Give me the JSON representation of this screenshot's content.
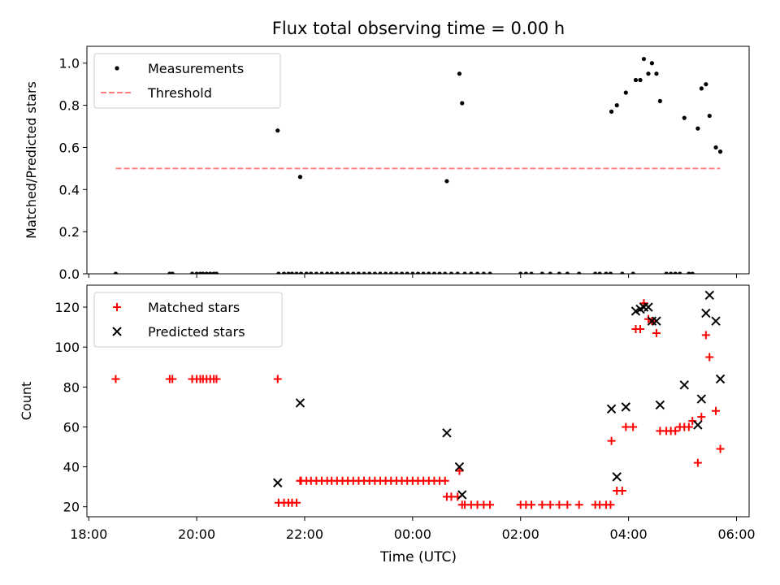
{
  "figure": {
    "title": "Flux total observing time = 0.00 h",
    "xlabel": "Time (UTC)",
    "x_ticks": [
      "18:00",
      "20:00",
      "22:00",
      "00:00",
      "02:00",
      "04:00",
      "06:00"
    ]
  },
  "colors": {
    "measurements": "#000000",
    "threshold": "#ff7f7f",
    "matched": "#ff0000",
    "predicted": "#000000"
  },
  "chart_data": [
    {
      "type": "scatter",
      "ylabel": "Matched/Predicted stars",
      "ylim": [
        0,
        1.08
      ],
      "xlim": [
        "17:58",
        "06:14"
      ],
      "y_ticks": [
        "0.0",
        "0.2",
        "0.4",
        "0.6",
        "0.8",
        "1.0"
      ],
      "legend": {
        "placement": "upper left",
        "entries": [
          "Measurements",
          "Threshold"
        ]
      },
      "threshold": {
        "name": "Threshold",
        "y": 0.5,
        "x_start": "18:30",
        "x_end": "05:42",
        "style": "dashed"
      },
      "series": [
        {
          "name": "Measurements",
          "points": [
            [
              "18:30",
              0.0
            ],
            [
              "19:30",
              0.0
            ],
            [
              "19:33",
              0.0
            ],
            [
              "19:55",
              0.0
            ],
            [
              "20:00",
              0.0
            ],
            [
              "20:04",
              0.0
            ],
            [
              "20:07",
              0.0
            ],
            [
              "20:11",
              0.0
            ],
            [
              "20:15",
              0.0
            ],
            [
              "20:19",
              0.0
            ],
            [
              "20:22",
              0.0
            ],
            [
              "21:30",
              0.68
            ],
            [
              "21:31",
              0.0
            ],
            [
              "21:37",
              0.0
            ],
            [
              "21:42",
              0.0
            ],
            [
              "21:46",
              0.0
            ],
            [
              "21:51",
              0.0
            ],
            [
              "21:55",
              0.46
            ],
            [
              "21:56",
              0.0
            ],
            [
              "22:02",
              0.0
            ],
            [
              "22:07",
              0.0
            ],
            [
              "22:13",
              0.0
            ],
            [
              "22:19",
              0.0
            ],
            [
              "22:25",
              0.0
            ],
            [
              "22:30",
              0.0
            ],
            [
              "22:36",
              0.0
            ],
            [
              "22:42",
              0.0
            ],
            [
              "22:48",
              0.0
            ],
            [
              "22:54",
              0.0
            ],
            [
              "23:00",
              0.0
            ],
            [
              "23:06",
              0.0
            ],
            [
              "23:12",
              0.0
            ],
            [
              "23:18",
              0.0
            ],
            [
              "23:24",
              0.0
            ],
            [
              "23:30",
              0.0
            ],
            [
              "23:36",
              0.0
            ],
            [
              "23:42",
              0.0
            ],
            [
              "23:48",
              0.0
            ],
            [
              "23:54",
              0.0
            ],
            [
              "00:00",
              0.0
            ],
            [
              "00:06",
              0.0
            ],
            [
              "00:12",
              0.0
            ],
            [
              "00:18",
              0.0
            ],
            [
              "00:24",
              0.0
            ],
            [
              "00:30",
              0.0
            ],
            [
              "00:36",
              0.0
            ],
            [
              "00:38",
              0.44
            ],
            [
              "00:43",
              0.0
            ],
            [
              "00:50",
              0.0
            ],
            [
              "00:52",
              0.95
            ],
            [
              "00:55",
              0.81
            ],
            [
              "00:58",
              0.0
            ],
            [
              "01:05",
              0.0
            ],
            [
              "01:12",
              0.0
            ],
            [
              "01:19",
              0.0
            ],
            [
              "01:26",
              0.0
            ],
            [
              "02:00",
              0.0
            ],
            [
              "02:06",
              0.0
            ],
            [
              "02:12",
              0.0
            ],
            [
              "02:24",
              0.0
            ],
            [
              "02:33",
              0.0
            ],
            [
              "02:43",
              0.0
            ],
            [
              "02:52",
              0.0
            ],
            [
              "03:05",
              0.0
            ],
            [
              "03:23",
              0.0
            ],
            [
              "03:28",
              0.0
            ],
            [
              "03:35",
              0.0
            ],
            [
              "03:40",
              0.0
            ],
            [
              "03:41",
              0.77
            ],
            [
              "03:47",
              0.8
            ],
            [
              "03:53",
              0.0
            ],
            [
              "03:57",
              0.86
            ],
            [
              "04:05",
              0.0
            ],
            [
              "04:08",
              0.92
            ],
            [
              "04:13",
              0.92
            ],
            [
              "04:17",
              1.02
            ],
            [
              "04:22",
              0.95
            ],
            [
              "04:26",
              1.0
            ],
            [
              "04:31",
              0.95
            ],
            [
              "04:35",
              0.82
            ],
            [
              "04:42",
              0.0
            ],
            [
              "04:47",
              0.0
            ],
            [
              "04:52",
              0.0
            ],
            [
              "04:57",
              0.0
            ],
            [
              "05:02",
              0.74
            ],
            [
              "05:07",
              0.0
            ],
            [
              "05:11",
              0.0
            ],
            [
              "05:17",
              0.69
            ],
            [
              "05:21",
              0.88
            ],
            [
              "05:26",
              0.9
            ],
            [
              "05:30",
              0.75
            ],
            [
              "05:37",
              0.6
            ],
            [
              "05:42",
              0.58
            ]
          ]
        }
      ]
    },
    {
      "type": "scatter",
      "ylabel": "Count",
      "ylim": [
        15,
        131
      ],
      "xlim": [
        "17:58",
        "06:14"
      ],
      "y_ticks": [
        "20",
        "40",
        "60",
        "80",
        "100",
        "120"
      ],
      "legend": {
        "placement": "upper left",
        "entries": [
          "Matched stars",
          "Predicted stars"
        ]
      },
      "series": [
        {
          "name": "Matched stars",
          "marker": "plus",
          "points": [
            [
              "18:30",
              84
            ],
            [
              "19:30",
              84
            ],
            [
              "19:33",
              84
            ],
            [
              "19:55",
              84
            ],
            [
              "20:00",
              84
            ],
            [
              "20:04",
              84
            ],
            [
              "20:07",
              84
            ],
            [
              "20:11",
              84
            ],
            [
              "20:15",
              84
            ],
            [
              "20:19",
              84
            ],
            [
              "20:22",
              84
            ],
            [
              "21:30",
              84
            ],
            [
              "21:31",
              22
            ],
            [
              "21:37",
              22
            ],
            [
              "21:42",
              22
            ],
            [
              "21:46",
              22
            ],
            [
              "21:51",
              22
            ],
            [
              "21:55",
              33
            ],
            [
              "21:56",
              33
            ],
            [
              "22:02",
              33
            ],
            [
              "22:07",
              33
            ],
            [
              "22:13",
              33
            ],
            [
              "22:19",
              33
            ],
            [
              "22:25",
              33
            ],
            [
              "22:30",
              33
            ],
            [
              "22:36",
              33
            ],
            [
              "22:42",
              33
            ],
            [
              "22:48",
              33
            ],
            [
              "22:54",
              33
            ],
            [
              "23:00",
              33
            ],
            [
              "23:06",
              33
            ],
            [
              "23:12",
              33
            ],
            [
              "23:18",
              33
            ],
            [
              "23:24",
              33
            ],
            [
              "23:30",
              33
            ],
            [
              "23:36",
              33
            ],
            [
              "23:42",
              33
            ],
            [
              "23:48",
              33
            ],
            [
              "23:54",
              33
            ],
            [
              "00:00",
              33
            ],
            [
              "00:06",
              33
            ],
            [
              "00:12",
              33
            ],
            [
              "00:18",
              33
            ],
            [
              "00:24",
              33
            ],
            [
              "00:30",
              33
            ],
            [
              "00:36",
              33
            ],
            [
              "00:38",
              25
            ],
            [
              "00:43",
              25
            ],
            [
              "00:50",
              25
            ],
            [
              "00:52",
              38
            ],
            [
              "00:55",
              21
            ],
            [
              "00:58",
              21
            ],
            [
              "01:05",
              21
            ],
            [
              "01:12",
              21
            ],
            [
              "01:19",
              21
            ],
            [
              "01:26",
              21
            ],
            [
              "02:00",
              21
            ],
            [
              "02:06",
              21
            ],
            [
              "02:12",
              21
            ],
            [
              "02:24",
              21
            ],
            [
              "02:33",
              21
            ],
            [
              "02:43",
              21
            ],
            [
              "02:52",
              21
            ],
            [
              "03:05",
              21
            ],
            [
              "03:23",
              21
            ],
            [
              "03:28",
              21
            ],
            [
              "03:35",
              21
            ],
            [
              "03:40",
              21
            ],
            [
              "03:41",
              53
            ],
            [
              "03:47",
              28
            ],
            [
              "03:53",
              28
            ],
            [
              "03:57",
              60
            ],
            [
              "04:05",
              60
            ],
            [
              "04:08",
              109
            ],
            [
              "04:13",
              109
            ],
            [
              "04:17",
              122
            ],
            [
              "04:22",
              114
            ],
            [
              "04:26",
              113
            ],
            [
              "04:31",
              107
            ],
            [
              "04:35",
              58
            ],
            [
              "04:42",
              58
            ],
            [
              "04:47",
              58
            ],
            [
              "04:52",
              58
            ],
            [
              "04:57",
              60
            ],
            [
              "05:02",
              60
            ],
            [
              "05:07",
              60
            ],
            [
              "05:11",
              63
            ],
            [
              "05:17",
              42
            ],
            [
              "05:21",
              65
            ],
            [
              "05:26",
              106
            ],
            [
              "05:30",
              95
            ],
            [
              "05:37",
              68
            ],
            [
              "05:42",
              49
            ]
          ]
        },
        {
          "name": "Predicted stars",
          "marker": "x",
          "points": [
            [
              "21:30",
              32
            ],
            [
              "21:55",
              72
            ],
            [
              "00:38",
              57
            ],
            [
              "00:52",
              40
            ],
            [
              "00:55",
              26
            ],
            [
              "03:41",
              69
            ],
            [
              "03:47",
              35
            ],
            [
              "03:57",
              70
            ],
            [
              "04:08",
              118
            ],
            [
              "04:13",
              119
            ],
            [
              "04:17",
              120
            ],
            [
              "04:22",
              120
            ],
            [
              "04:26",
              113
            ],
            [
              "04:31",
              113
            ],
            [
              "04:35",
              71
            ],
            [
              "05:02",
              81
            ],
            [
              "05:17",
              61
            ],
            [
              "05:21",
              74
            ],
            [
              "05:26",
              117
            ],
            [
              "05:30",
              126
            ],
            [
              "05:37",
              113
            ],
            [
              "05:42",
              84
            ]
          ]
        }
      ]
    }
  ]
}
